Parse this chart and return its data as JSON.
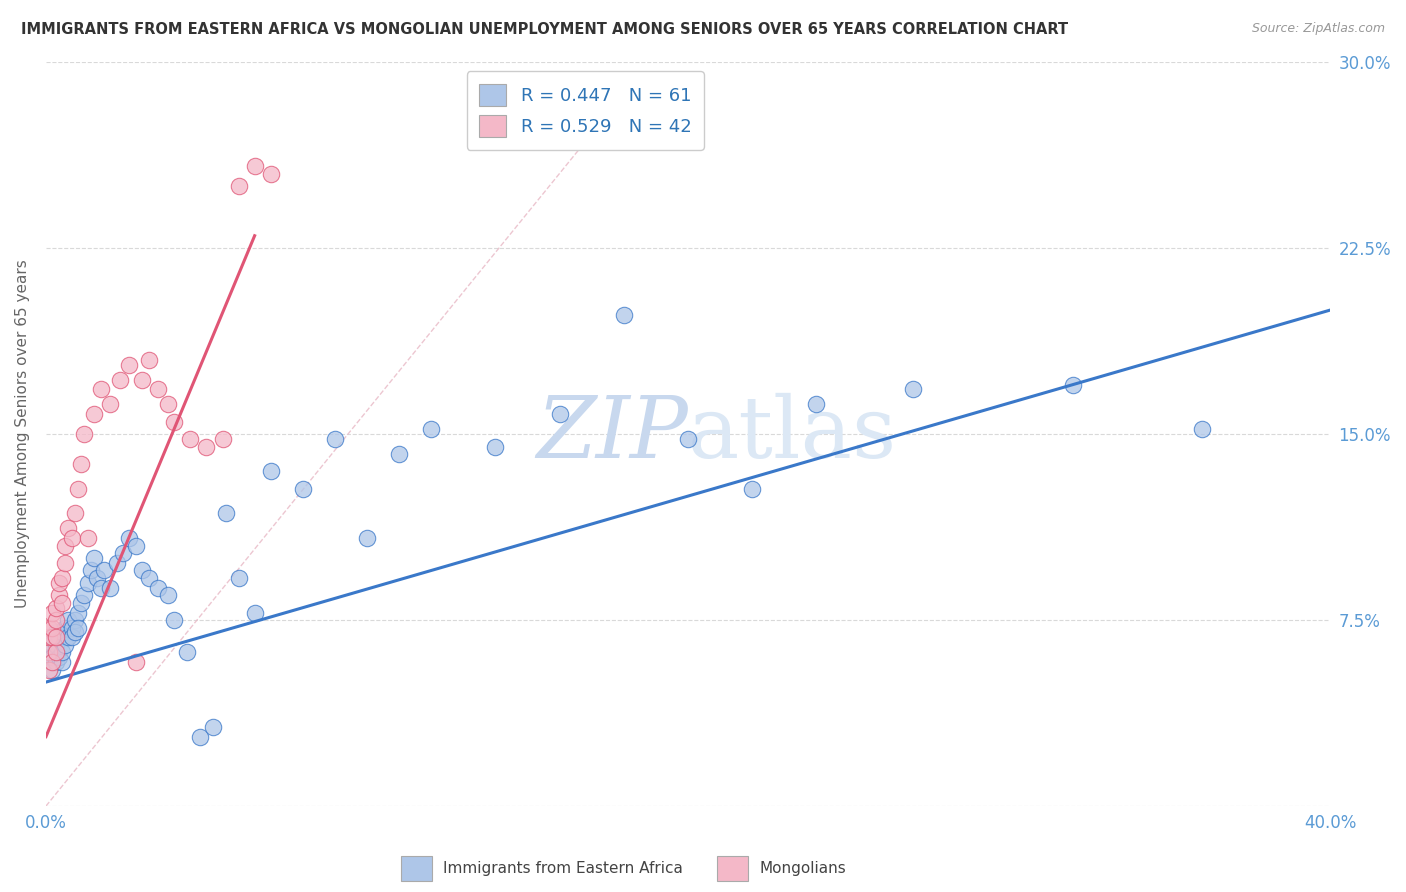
{
  "title": "IMMIGRANTS FROM EASTERN AFRICA VS MONGOLIAN UNEMPLOYMENT AMONG SENIORS OVER 65 YEARS CORRELATION CHART",
  "source": "Source: ZipAtlas.com",
  "ylabel": "Unemployment Among Seniors over 65 years",
  "legend_r_blue": "R = 0.447",
  "legend_n_blue": "N = 61",
  "legend_r_pink": "R = 0.529",
  "legend_n_pink": "N = 42",
  "legend_label_blue": "Immigrants from Eastern Africa",
  "legend_label_pink": "Mongolians",
  "watermark_zip": "ZIP",
  "watermark_atlas": "atlas",
  "blue_scatter_color": "#aec6e8",
  "pink_scatter_color": "#f4b8c8",
  "blue_line_color": "#3a78c9",
  "pink_line_color": "#e05575",
  "legend_text_color": "#2f75b6",
  "title_color": "#333333",
  "source_color": "#999999",
  "watermark_color": "#dce8f5",
  "grid_color": "#d0d0d0",
  "tick_color": "#5b9bd5",
  "xlim": [
    0.0,
    0.4
  ],
  "ylim": [
    0.0,
    0.3
  ],
  "y_tick_positions": [
    0.0,
    0.075,
    0.15,
    0.225,
    0.3
  ],
  "y_tick_labels": [
    "",
    "7.5%",
    "15.0%",
    "22.5%",
    "30.0%"
  ],
  "x_tick_positions": [
    0.0,
    0.1,
    0.2,
    0.3,
    0.4
  ],
  "x_tick_labels": [
    "0.0%",
    "",
    "",
    "",
    "40.0%"
  ],
  "blue_line_x": [
    0.0,
    0.4
  ],
  "blue_line_y": [
    0.05,
    0.2
  ],
  "pink_line_x": [
    0.0,
    0.065
  ],
  "pink_line_y": [
    0.028,
    0.23
  ],
  "dash_line_x": [
    0.0,
    0.185
  ],
  "dash_line_y": [
    0.0,
    0.295
  ],
  "blue_scatter_x": [
    0.001,
    0.001,
    0.002,
    0.002,
    0.003,
    0.003,
    0.003,
    0.004,
    0.004,
    0.005,
    0.005,
    0.005,
    0.006,
    0.006,
    0.007,
    0.007,
    0.008,
    0.008,
    0.009,
    0.009,
    0.01,
    0.01,
    0.011,
    0.012,
    0.013,
    0.014,
    0.015,
    0.016,
    0.017,
    0.018,
    0.02,
    0.022,
    0.024,
    0.026,
    0.028,
    0.03,
    0.032,
    0.035,
    0.038,
    0.04,
    0.044,
    0.048,
    0.052,
    0.056,
    0.06,
    0.065,
    0.07,
    0.08,
    0.09,
    0.1,
    0.11,
    0.12,
    0.14,
    0.16,
    0.2,
    0.22,
    0.27,
    0.32,
    0.36,
    0.24,
    0.18
  ],
  "blue_scatter_y": [
    0.06,
    0.065,
    0.055,
    0.06,
    0.058,
    0.065,
    0.07,
    0.06,
    0.068,
    0.058,
    0.062,
    0.07,
    0.072,
    0.065,
    0.068,
    0.075,
    0.072,
    0.068,
    0.075,
    0.07,
    0.078,
    0.072,
    0.082,
    0.085,
    0.09,
    0.095,
    0.1,
    0.092,
    0.088,
    0.095,
    0.088,
    0.098,
    0.102,
    0.108,
    0.105,
    0.095,
    0.092,
    0.088,
    0.085,
    0.075,
    0.062,
    0.028,
    0.032,
    0.118,
    0.092,
    0.078,
    0.135,
    0.128,
    0.148,
    0.108,
    0.142,
    0.152,
    0.145,
    0.158,
    0.148,
    0.128,
    0.168,
    0.17,
    0.152,
    0.162,
    0.198
  ],
  "pink_scatter_x": [
    0.001,
    0.001,
    0.001,
    0.001,
    0.002,
    0.002,
    0.002,
    0.002,
    0.003,
    0.003,
    0.003,
    0.003,
    0.004,
    0.004,
    0.005,
    0.005,
    0.006,
    0.006,
    0.007,
    0.008,
    0.009,
    0.01,
    0.011,
    0.012,
    0.013,
    0.015,
    0.017,
    0.02,
    0.023,
    0.026,
    0.028,
    0.03,
    0.032,
    0.035,
    0.038,
    0.04,
    0.045,
    0.05,
    0.055,
    0.06,
    0.065,
    0.07
  ],
  "pink_scatter_y": [
    0.055,
    0.062,
    0.068,
    0.072,
    0.058,
    0.068,
    0.072,
    0.078,
    0.062,
    0.068,
    0.075,
    0.08,
    0.085,
    0.09,
    0.092,
    0.082,
    0.105,
    0.098,
    0.112,
    0.108,
    0.118,
    0.128,
    0.138,
    0.15,
    0.108,
    0.158,
    0.168,
    0.162,
    0.172,
    0.178,
    0.058,
    0.172,
    0.18,
    0.168,
    0.162,
    0.155,
    0.148,
    0.145,
    0.148,
    0.25,
    0.258,
    0.255
  ]
}
